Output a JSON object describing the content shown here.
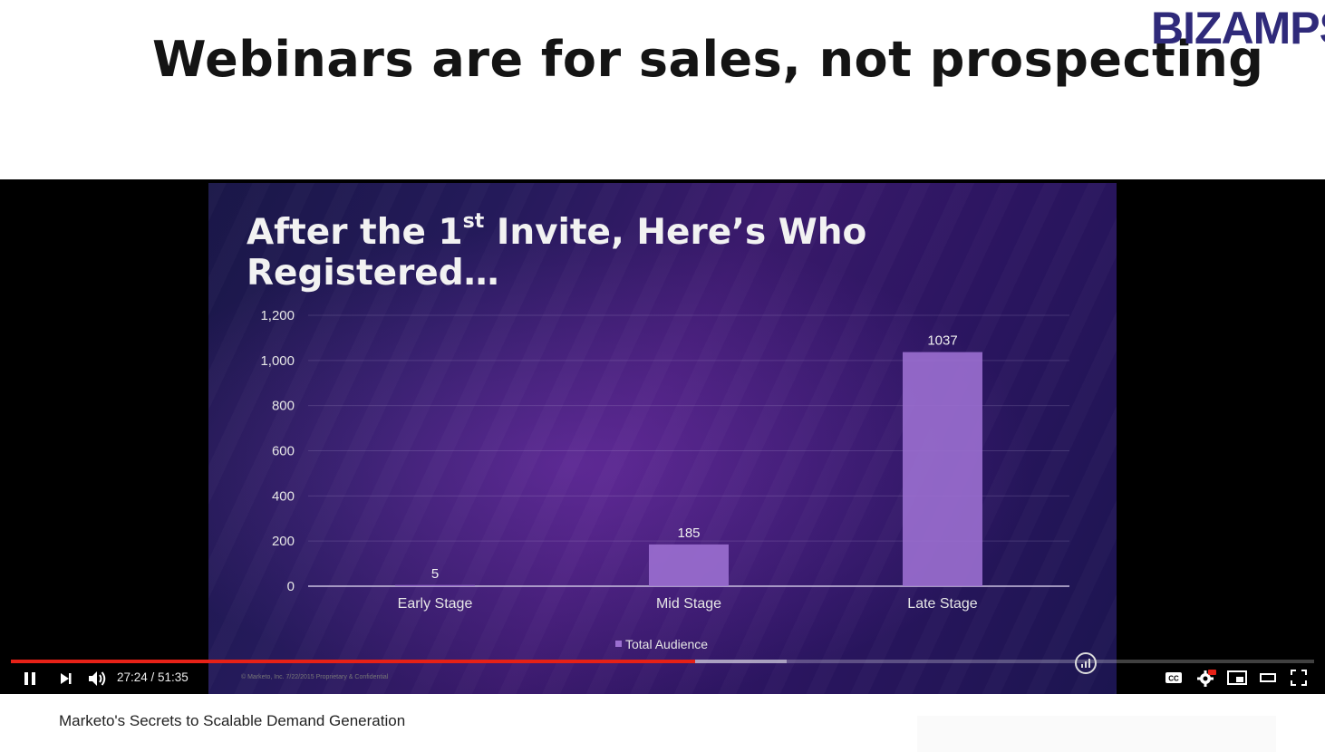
{
  "slide": {
    "title": "Webinars are for sales, not prospecting",
    "logo": "BIZAMPS"
  },
  "video": {
    "title_main": "After the 1",
    "title_sup": "st",
    "title_rest": " Invite, Here’s Who Registered…",
    "time_current": "27:24",
    "time_total": "51:35",
    "time_display": "27:24 / 51:35",
    "progress": 0.525,
    "buffered": 0.595,
    "watermark": "© Marketo, Inc. 7/22/2015   Proprietary & Confidential",
    "caption": "Marketo's Secrets to Scalable Demand Generation"
  },
  "icons": {
    "pause": "pause-icon",
    "next": "skip-next-icon",
    "volume": "volume-icon",
    "cc": "captions-icon",
    "settings": "settings-gear-icon",
    "miniplayer": "miniplayer-icon",
    "theater": "theater-mode-icon",
    "fullscreen": "fullscreen-icon"
  },
  "colors": {
    "accent_red": "#e62117",
    "bar": "#9b6fd0",
    "logo": "#2f2a7a"
  },
  "chart_data": {
    "type": "bar",
    "categories": [
      "Early Stage",
      "Mid Stage",
      "Late Stage"
    ],
    "series": [
      {
        "name": "Total Audience",
        "values": [
          5,
          185,
          1037
        ]
      }
    ],
    "ylim": [
      0,
      1200
    ],
    "yticks": [
      0,
      200,
      400,
      600,
      800,
      1000,
      1200
    ],
    "ytick_labels": [
      "0",
      "200",
      "400",
      "600",
      "800",
      "1,000",
      "1,200"
    ],
    "legend": "bottom-center",
    "grid": true
  }
}
